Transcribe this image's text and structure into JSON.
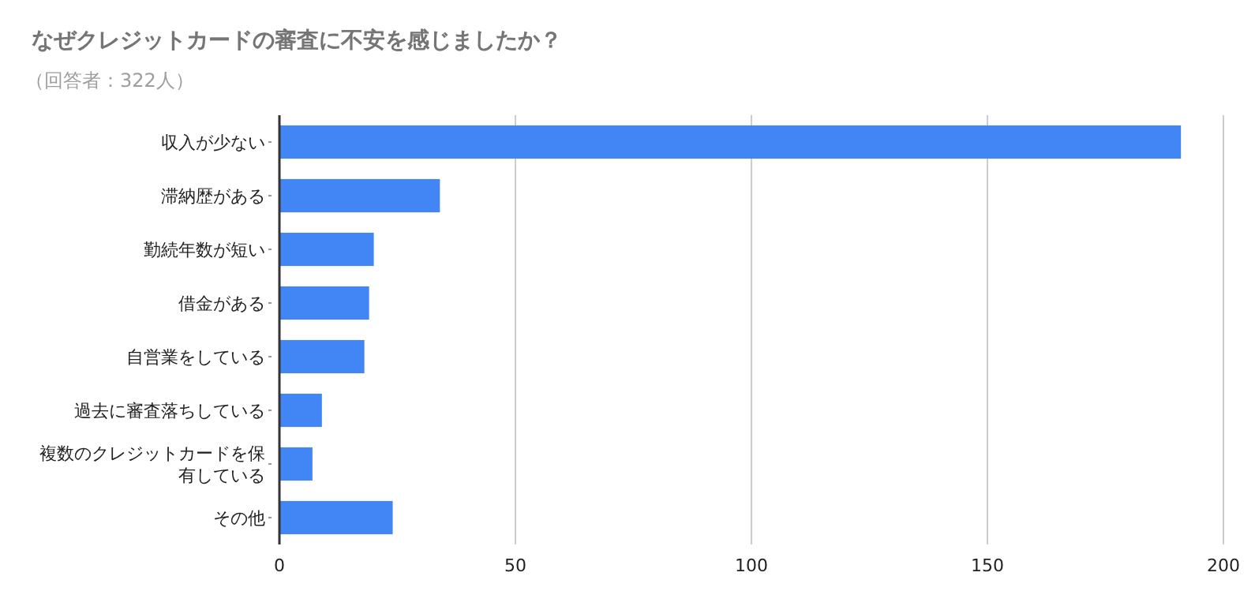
{
  "chart_data": {
    "type": "bar",
    "orientation": "horizontal",
    "title": "なぜクレジットカードの審査に不安を感じましたか？",
    "subtitle": "（回答者：322人）",
    "categories": [
      "収入が少ない",
      "滞納歴がある",
      "勤続年数が短い",
      "借金がある",
      "自営業をしている",
      "過去に審査落ちしている",
      "複数のクレジットカードを保有している",
      "その他"
    ],
    "values": [
      191,
      34,
      20,
      19,
      18,
      9,
      7,
      24
    ],
    "color": "#4285f4",
    "xlim": [
      0,
      200
    ],
    "xticks": [
      0,
      50,
      100,
      150,
      200
    ],
    "grid": "x"
  }
}
